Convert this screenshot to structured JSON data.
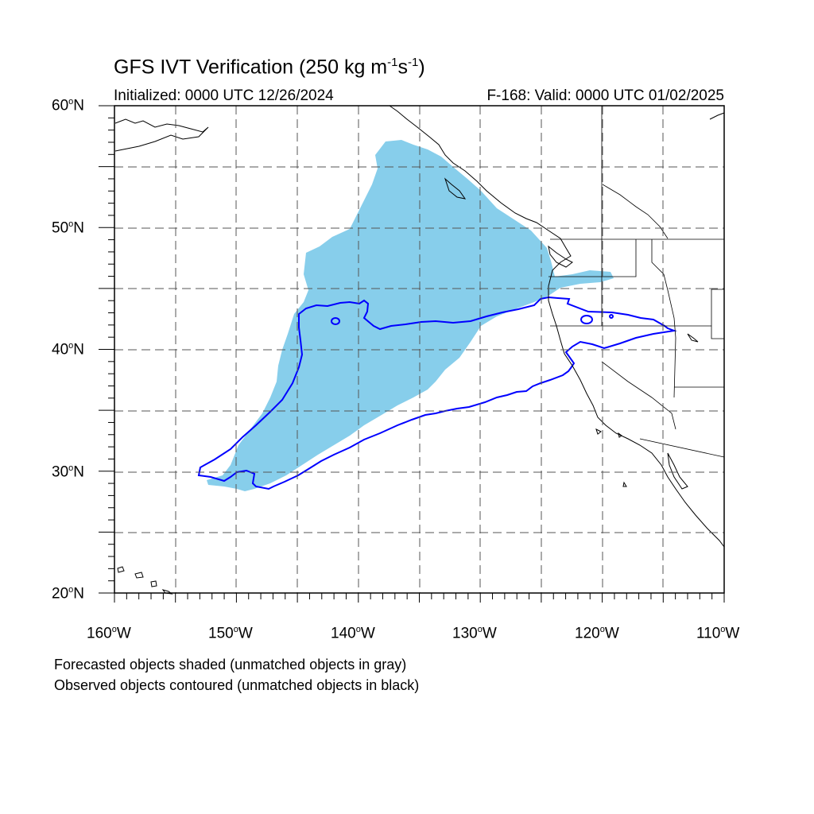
{
  "title": {
    "prefix": "GFS IVT Verification (250 kg m",
    "sup1": "-1",
    "mid": "s",
    "sup2": "-1",
    "suffix": ")"
  },
  "initialized": "Initialized: 0000 UTC 12/26/2024",
  "valid": "F-168: Valid: 0000 UTC 01/02/2025",
  "axes": {
    "lat_ticks": [
      {
        "num": "60",
        "hem": "N"
      },
      {
        "num": "50",
        "hem": "N"
      },
      {
        "num": "40",
        "hem": "N"
      },
      {
        "num": "30",
        "hem": "N"
      },
      {
        "num": "20",
        "hem": "N"
      }
    ],
    "lon_ticks": [
      {
        "num": "160",
        "hem": "W"
      },
      {
        "num": "150",
        "hem": "W"
      },
      {
        "num": "140",
        "hem": "W"
      },
      {
        "num": "130",
        "hem": "W"
      },
      {
        "num": "120",
        "hem": "W"
      },
      {
        "num": "110",
        "hem": "W"
      }
    ],
    "degree_symbol": "o"
  },
  "notes": {
    "line1": "Forecasted objects shaded (unmatched objects in gray)",
    "line2": "Observed objects contoured (unmatched objects in black)"
  },
  "colors": {
    "forecast_fill": "#87CEEB",
    "observed_contour": "#0000FF",
    "coastline": "#000000",
    "grid": "#555555"
  }
}
